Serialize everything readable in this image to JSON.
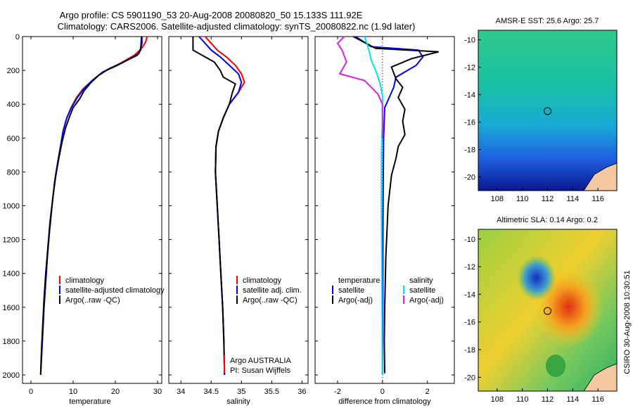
{
  "title_line1": "Argo profile: CS 5901190_53 20-Aug-2008 20080820_50 15.133S 111.92E",
  "title_line2": "Climatology: CARS2006. Satellite-adjusted climatology: synTS_20080822.nc (1.9d later)",
  "credit": "CSIRO 30-Aug-2008 10:30:51",
  "colors": {
    "climatology": "#ff0000",
    "satellite": "#0000ff",
    "argo": "#000000",
    "salinity_sat": "#00e5e5",
    "salinity_argo": "#e020e0"
  },
  "chart_data": [
    {
      "type": "line",
      "id": "temperature",
      "xlabel": "temperature",
      "xlim": [
        -2,
        31
      ],
      "ylim": [
        0,
        2050
      ],
      "xticks": [
        "0",
        "10",
        "20",
        "30"
      ],
      "xtick_values": [
        0,
        10,
        20,
        30
      ],
      "yticks": [
        "0",
        "200",
        "400",
        "600",
        "800",
        "1000",
        "1200",
        "1400",
        "1600",
        "1800",
        "2000"
      ],
      "ytick_values": [
        0,
        200,
        400,
        600,
        800,
        1000,
        1200,
        1400,
        1600,
        1800,
        2000
      ],
      "legend": [
        "climatology",
        "satellite-adjusted climatology",
        "Argo(..raw -QC)"
      ],
      "series": [
        {
          "name": "climatology",
          "color_key": "climatology",
          "points": [
            [
              27.5,
              0
            ],
            [
              27.2,
              30
            ],
            [
              26.5,
              60
            ],
            [
              25.8,
              80
            ],
            [
              24.5,
              110
            ],
            [
              21,
              160
            ],
            [
              17,
              210
            ],
            [
              14.5,
              260
            ],
            [
              12.3,
              310
            ],
            [
              10.8,
              360
            ],
            [
              9.5,
              420
            ],
            [
              8.5,
              480
            ],
            [
              7.6,
              560
            ],
            [
              7,
              650
            ],
            [
              6.3,
              750
            ],
            [
              5.6,
              860
            ],
            [
              5,
              1000
            ],
            [
              4.4,
              1150
            ],
            [
              3.9,
              1300
            ],
            [
              3.5,
              1450
            ],
            [
              3.1,
              1600
            ],
            [
              2.8,
              1750
            ],
            [
              2.5,
              1900
            ],
            [
              2.3,
              2000
            ]
          ]
        },
        {
          "name": "satellite",
          "color_key": "satellite",
          "points": [
            [
              26.3,
              0
            ],
            [
              26.3,
              40
            ],
            [
              26,
              70
            ],
            [
              25.6,
              100
            ],
            [
              23.5,
              130
            ],
            [
              20.5,
              170
            ],
            [
              17,
              210
            ],
            [
              14.5,
              260
            ],
            [
              12.5,
              310
            ],
            [
              11,
              360
            ],
            [
              9.6,
              420
            ],
            [
              8.5,
              480
            ],
            [
              7.6,
              560
            ],
            [
              7,
              650
            ],
            [
              6.3,
              750
            ],
            [
              5.6,
              860
            ],
            [
              5,
              1000
            ],
            [
              4.4,
              1150
            ],
            [
              3.9,
              1300
            ],
            [
              3.5,
              1450
            ],
            [
              3.1,
              1600
            ],
            [
              2.8,
              1750
            ],
            [
              2.5,
              1900
            ],
            [
              2.3,
              2000
            ]
          ]
        },
        {
          "name": "Argo",
          "color_key": "argo",
          "points": [
            [
              26.2,
              0
            ],
            [
              26.1,
              40
            ],
            [
              26,
              80
            ],
            [
              25.2,
              110
            ],
            [
              22,
              150
            ],
            [
              18.5,
              190
            ],
            [
              16,
              230
            ],
            [
              14.3,
              270
            ],
            [
              12.6,
              320
            ],
            [
              11.5,
              370
            ],
            [
              10,
              420
            ],
            [
              9.2,
              470
            ],
            [
              8.2,
              540
            ],
            [
              7.4,
              620
            ],
            [
              6.6,
              720
            ],
            [
              5.9,
              820
            ],
            [
              5.2,
              950
            ],
            [
              4.5,
              1100
            ],
            [
              4,
              1250
            ],
            [
              3.5,
              1400
            ],
            [
              3.1,
              1550
            ],
            [
              2.8,
              1700
            ],
            [
              2.5,
              1850
            ],
            [
              2.3,
              1990
            ]
          ]
        }
      ]
    },
    {
      "type": "line",
      "id": "salinity",
      "xlabel": "salinity",
      "xlim": [
        33.8,
        36.1
      ],
      "ylim": [
        0,
        2050
      ],
      "xticks": [
        "34",
        "34.5",
        "35",
        "35.5",
        "36"
      ],
      "xtick_values": [
        34,
        34.5,
        35,
        35.5,
        36
      ],
      "legend": [
        "climatology",
        "satellite adj. clim.",
        "Argo(..raw -QC)"
      ],
      "annotation_line1": "Argo AUSTRALIA",
      "annotation_line2": "PI: Susan Wijffels",
      "series": [
        {
          "name": "climatology",
          "color_key": "climatology",
          "points": [
            [
              34.4,
              0
            ],
            [
              34.5,
              40
            ],
            [
              34.6,
              80
            ],
            [
              34.75,
              120
            ],
            [
              34.9,
              170
            ],
            [
              35,
              220
            ],
            [
              35.05,
              270
            ],
            [
              34.95,
              330
            ],
            [
              34.8,
              400
            ],
            [
              34.7,
              480
            ],
            [
              34.62,
              560
            ],
            [
              34.58,
              650
            ],
            [
              34.57,
              800
            ],
            [
              34.6,
              1000
            ],
            [
              34.63,
              1200
            ],
            [
              34.66,
              1400
            ],
            [
              34.69,
              1600
            ],
            [
              34.71,
              1800
            ],
            [
              34.72,
              2000
            ]
          ]
        },
        {
          "name": "satellite",
          "color_key": "satellite",
          "points": [
            [
              34.3,
              0
            ],
            [
              34.4,
              40
            ],
            [
              34.5,
              80
            ],
            [
              34.65,
              120
            ],
            [
              34.8,
              170
            ],
            [
              34.95,
              220
            ],
            [
              35,
              270
            ],
            [
              34.95,
              330
            ],
            [
              34.8,
              400
            ],
            [
              34.7,
              480
            ],
            [
              34.62,
              560
            ],
            [
              34.58,
              650
            ],
            [
              34.57,
              800
            ],
            [
              34.6,
              1000
            ],
            [
              34.63,
              1200
            ],
            [
              34.66,
              1400
            ],
            [
              34.69,
              1600
            ],
            [
              34.71,
              1800
            ],
            [
              34.72,
              2000
            ]
          ]
        },
        {
          "name": "Argo",
          "color_key": "argo",
          "points": [
            [
              34.2,
              0
            ],
            [
              34.2,
              60
            ],
            [
              34.2,
              80
            ],
            [
              34.35,
              110
            ],
            [
              34.55,
              150
            ],
            [
              34.65,
              200
            ],
            [
              34.7,
              240
            ],
            [
              34.9,
              280
            ],
            [
              34.85,
              330
            ],
            [
              34.8,
              400
            ],
            [
              34.7,
              480
            ],
            [
              34.62,
              560
            ],
            [
              34.58,
              650
            ],
            [
              34.57,
              800
            ],
            [
              34.6,
              1000
            ],
            [
              34.63,
              1200
            ],
            [
              34.66,
              1400
            ],
            [
              34.69,
              1600
            ],
            [
              34.71,
              1800
            ],
            [
              34.72,
              1990
            ]
          ]
        }
      ]
    },
    {
      "type": "line",
      "id": "difference",
      "xlabel": "difference from climatology",
      "xlim": [
        -3,
        3.2
      ],
      "ylim": [
        0,
        2050
      ],
      "xticks": [
        "-2",
        "0",
        "2"
      ],
      "xtick_values": [
        -2,
        0,
        2
      ],
      "legend_col1_title": "temperature",
      "legend_col2_title": "salinity",
      "legend": [
        "satellite",
        "Argo(-adj)",
        "satellite",
        "Argo(-adj)"
      ],
      "series": [
        {
          "name": "temp satellite",
          "color_key": "satellite",
          "points": [
            [
              -1.2,
              0
            ],
            [
              -0.5,
              60
            ],
            [
              1.6,
              80
            ],
            [
              1.8,
              120
            ],
            [
              1.5,
              170
            ],
            [
              0.6,
              240
            ],
            [
              0.5,
              300
            ],
            [
              0.3,
              360
            ],
            [
              0.1,
              420
            ],
            [
              0.05,
              600
            ],
            [
              0.03,
              900
            ],
            [
              0.02,
              1200
            ],
            [
              0.01,
              1600
            ],
            [
              0,
              2000
            ]
          ]
        },
        {
          "name": "temp Argo",
          "color_key": "argo",
          "points": [
            [
              -1.3,
              0
            ],
            [
              -0.3,
              70
            ],
            [
              2.5,
              90
            ],
            [
              1.3,
              130
            ],
            [
              0.4,
              180
            ],
            [
              0.6,
              250
            ],
            [
              0.9,
              300
            ],
            [
              0.7,
              360
            ],
            [
              1.0,
              430
            ],
            [
              0.9,
              500
            ],
            [
              1.0,
              580
            ],
            [
              0.7,
              650
            ],
            [
              0.6,
              720
            ],
            [
              0.4,
              820
            ],
            [
              0.25,
              1000
            ],
            [
              0.15,
              1300
            ],
            [
              0.1,
              1600
            ],
            [
              0.08,
              1800
            ],
            [
              0.1,
              1990
            ]
          ]
        },
        {
          "name": "sal satellite",
          "color_key": "salinity_sat",
          "points": [
            [
              -0.8,
              0
            ],
            [
              -0.6,
              80
            ],
            [
              -0.5,
              140
            ],
            [
              -0.3,
              200
            ],
            [
              -0.1,
              280
            ],
            [
              0,
              350
            ],
            [
              0,
              500
            ],
            [
              -0.05,
              700
            ],
            [
              -0.05,
              1000
            ],
            [
              -0.03,
              1300
            ],
            [
              -0.02,
              1600
            ],
            [
              0,
              2000
            ]
          ]
        },
        {
          "name": "sal Argo",
          "color_key": "salinity_argo",
          "points": [
            [
              -1.7,
              0
            ],
            [
              -2,
              40
            ],
            [
              -1.8,
              80
            ],
            [
              -1.6,
              150
            ],
            [
              -1.9,
              220
            ],
            [
              -0.8,
              260
            ],
            [
              -0.5,
              300
            ],
            [
              -0.2,
              340
            ],
            [
              0,
              400
            ],
            [
              0,
              500
            ],
            [
              0,
              600
            ]
          ]
        }
      ]
    },
    {
      "type": "heatmap",
      "id": "sst_map",
      "title": "AMSR-E SST: 25.6 Argo: 25.7",
      "xlim": [
        106.5,
        117.5
      ],
      "ylim": [
        -21,
        -9.3
      ],
      "xticks": [
        "108",
        "110",
        "112",
        "114",
        "116"
      ],
      "xtick_values": [
        108,
        110,
        112,
        114,
        116
      ],
      "yticks": [
        "-10",
        "-12",
        "-14",
        "-16",
        "-18",
        "-20"
      ],
      "ytick_values": [
        -10,
        -12,
        -14,
        -16,
        -18,
        -20
      ],
      "marker": [
        112,
        -15.2
      ]
    },
    {
      "type": "heatmap",
      "id": "sla_map",
      "title": "Altimetric SLA: 0.14 Argo: 0.2",
      "xlim": [
        106.5,
        117.5
      ],
      "ylim": [
        -21,
        -9.3
      ],
      "xticks": [
        "108",
        "110",
        "112",
        "114",
        "116"
      ],
      "xtick_values": [
        108,
        110,
        112,
        114,
        116
      ],
      "yticks": [
        "-10",
        "-12",
        "-14",
        "-16",
        "-18",
        "-20"
      ],
      "ytick_values": [
        -10,
        -12,
        -14,
        -16,
        -18,
        -20
      ],
      "marker": [
        112,
        -15.2
      ]
    }
  ]
}
